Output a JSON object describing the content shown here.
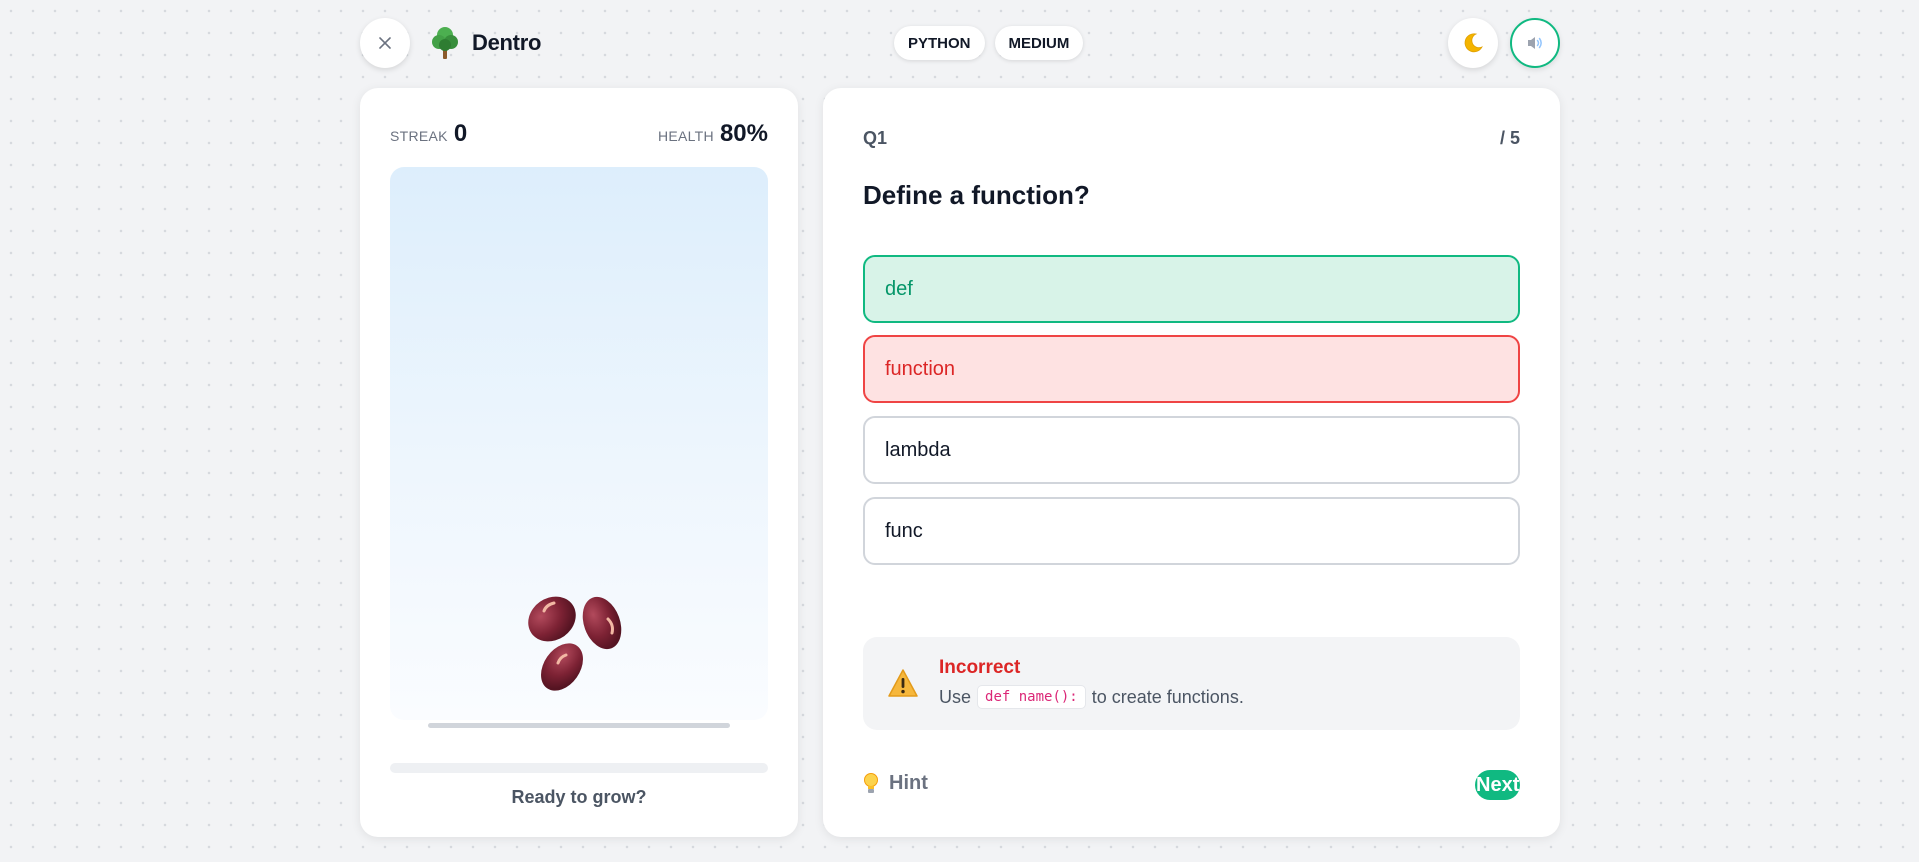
{
  "app": {
    "name": "Dentro"
  },
  "header": {
    "language": "PYTHON",
    "difficulty": "MEDIUM"
  },
  "stats": {
    "streak_label": "STREAK",
    "streak_value": "0",
    "health_label": "HEALTH",
    "health_value": "80%"
  },
  "plant": {
    "status_text": "Ready to grow?",
    "stage": "seeds",
    "progress": 0
  },
  "quiz": {
    "question_number": "Q1",
    "total": "/ 5",
    "question": "Define a function?",
    "options": [
      {
        "label": "def",
        "state": "correct"
      },
      {
        "label": "function",
        "state": "wrong"
      },
      {
        "label": "lambda",
        "state": "neutral"
      },
      {
        "label": "func",
        "state": "neutral"
      }
    ]
  },
  "feedback": {
    "title": "Incorrect",
    "prefix": "Use",
    "code": "def name():",
    "suffix": "to create functions."
  },
  "footer": {
    "hint_label": "Hint",
    "next_label": "Next"
  },
  "colors": {
    "accent": "#10b981",
    "error": "#ef4444",
    "background": "#f2f3f5"
  },
  "icons": {
    "close": "close-icon",
    "logo": "tree-icon",
    "theme": "moon-icon",
    "sound": "speaker-icon",
    "warning": "warning-icon",
    "hint": "lightbulb-icon"
  }
}
